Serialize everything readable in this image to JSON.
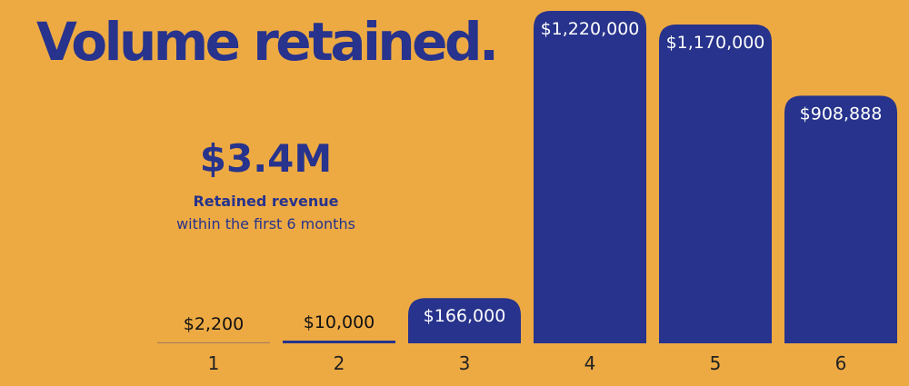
{
  "title": "Volume retained.",
  "stat": {
    "value": "$3.4M",
    "label": "Retained revenue",
    "sublabel": "within the first 6 months"
  },
  "colors": {
    "background": "#EDAA43",
    "bar": "#27338C",
    "label_on_bar": "#FFFFFF",
    "label_above_bar": "#111111"
  },
  "chart_data": {
    "type": "bar",
    "title": "Volume retained.",
    "xlabel": "",
    "ylabel": "",
    "categories": [
      "1",
      "2",
      "3",
      "4",
      "5",
      "6"
    ],
    "values": [
      2200,
      10000,
      166000,
      1220000,
      1170000,
      908888
    ],
    "data_labels": [
      "$2,200",
      "$10,000",
      "$166,000",
      "$1,220,000",
      "$1,170,000",
      "$908,888"
    ],
    "ylim": [
      0,
      1220000
    ],
    "grid": false,
    "legend": "none"
  }
}
